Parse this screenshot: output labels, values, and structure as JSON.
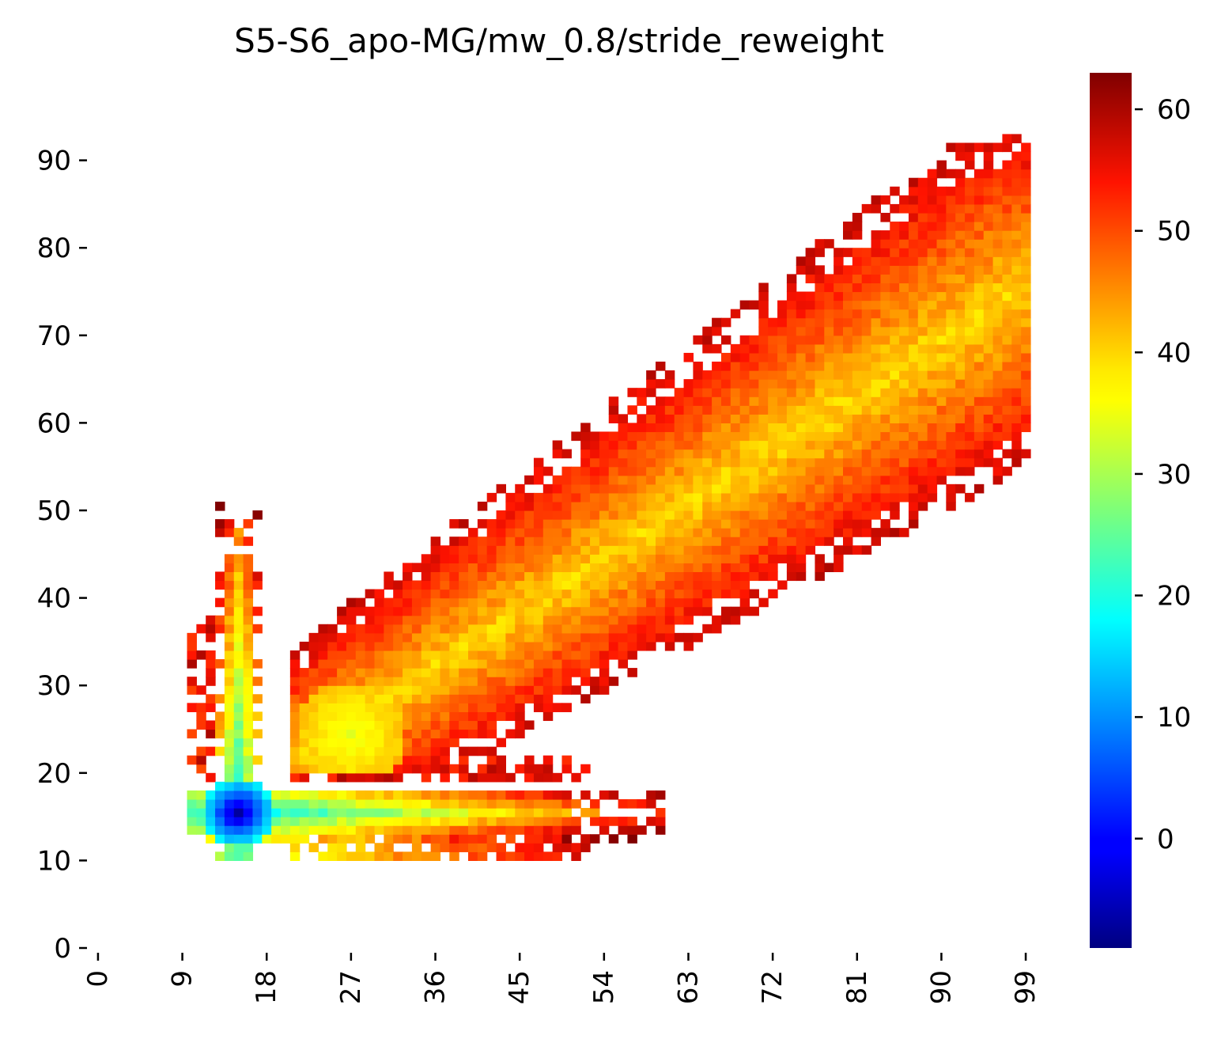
{
  "chart_data": {
    "type": "heatmap",
    "title": "S5-S6_apo-MG/mw_0.8/stride_reweight",
    "xlabel": "",
    "ylabel": "",
    "x_tick_labels": [
      "0",
      "9",
      "18",
      "27",
      "36",
      "45",
      "54",
      "63",
      "72",
      "81",
      "90",
      "99"
    ],
    "y_tick_labels": [
      "0",
      "10",
      "20",
      "30",
      "40",
      "50",
      "60",
      "70",
      "80",
      "90"
    ],
    "xlim": [
      0,
      100
    ],
    "ylim": [
      0,
      100
    ],
    "colormap": "jet",
    "colorbar": {
      "range": [
        -9,
        63
      ],
      "tick_labels": [
        "0",
        "10",
        "20",
        "30",
        "40",
        "50",
        "60"
      ]
    },
    "features": {
      "minimum": {
        "x": 15,
        "y": 15,
        "value": -8
      },
      "secondary_basin": {
        "x": 27,
        "y": 24,
        "value": 34
      },
      "horizontal_arm": {
        "y": 15,
        "x_range": [
          10,
          60
        ],
        "value_range": [
          18,
          58
        ]
      },
      "vertical_arm": {
        "x": 15,
        "y_range": [
          10,
          50
        ],
        "value_range": [
          18,
          58
        ]
      },
      "diagonal_band": {
        "from": [
          22,
          22
        ],
        "to": [
          99,
          75
        ],
        "core_value": 40,
        "edge_value": 60
      }
    }
  }
}
